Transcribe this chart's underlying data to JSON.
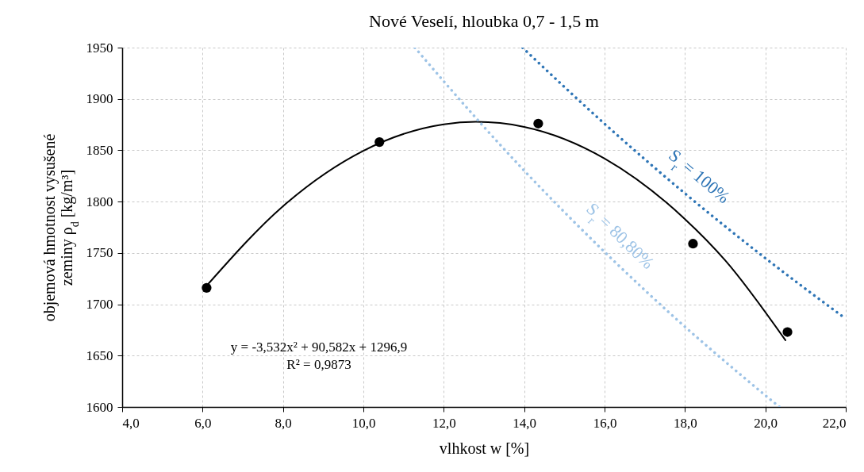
{
  "chart_data": {
    "type": "scatter",
    "title": "Nové Veselí, hloubka 0,7 - 1,5 m",
    "xlabel": "vlhkost w [%]",
    "ylabel": "objemová hmotnost vysušené\nzeminy ρ$_{d}$ [kg/m³]",
    "xlim": [
      4,
      22
    ],
    "ylim": [
      1600,
      1950
    ],
    "xticks": [
      {
        "value": 4,
        "label": "4,0"
      },
      {
        "value": 6,
        "label": "6,0"
      },
      {
        "value": 8,
        "label": "8,0"
      },
      {
        "value": 10,
        "label": "10,0"
      },
      {
        "value": 12,
        "label": "12,0"
      },
      {
        "value": 14,
        "label": "14,0"
      },
      {
        "value": 16,
        "label": "16,0"
      },
      {
        "value": 18,
        "label": "18,0"
      },
      {
        "value": 20,
        "label": "20,0"
      },
      {
        "value": 22,
        "label": "22,0"
      }
    ],
    "yticks": [
      1600,
      1650,
      1700,
      1750,
      1800,
      1850,
      1900,
      1950
    ],
    "grid": true,
    "series": [
      {
        "color": "#000000",
        "marker": "circle",
        "x": [
          6.1,
          10.4,
          14.35,
          18.2,
          20.55
        ],
        "values": [
          1716,
          1858,
          1876,
          1759,
          1673
        ]
      },
      {
        "type": "line",
        "color": "#000000",
        "line_style": "solid",
        "x": [
          6.1,
          8,
          10,
          12,
          12.8,
          14,
          16,
          18,
          19,
          20.5
        ],
        "values": [
          1718,
          1795.5,
          1849.5,
          1875.3,
          1877.7,
          1872.8,
          1842,
          1783,
          1742.9,
          1665
        ]
      },
      {
        "type": "line",
        "name": "S$_{r}$ = 100%",
        "color": "#2e75b6",
        "line_style": "dotted",
        "x": [
          13.96,
          15,
          16,
          17,
          18,
          19,
          20,
          21,
          22
        ],
        "values": [
          1950,
          1911.7,
          1875.8,
          1841.3,
          1808,
          1775.9,
          1744.9,
          1715,
          1686
        ]
      },
      {
        "type": "line",
        "name": "S$_{r}$ = 80,80%",
        "color": "#9dc3e6",
        "line_style": "dotted",
        "x": [
          11.28,
          12,
          13,
          14,
          15,
          16,
          17,
          18,
          19,
          20,
          20.35
        ],
        "values": [
          1950,
          1917.2,
          1872.7,
          1830.2,
          1789.8,
          1751,
          1713.8,
          1678.1,
          1644.2,
          1611.3,
          1600
        ]
      }
    ],
    "annotations": [
      "y = -3,532x² + 90,582x + 1296,9",
      "R² = 0,9873"
    ]
  }
}
